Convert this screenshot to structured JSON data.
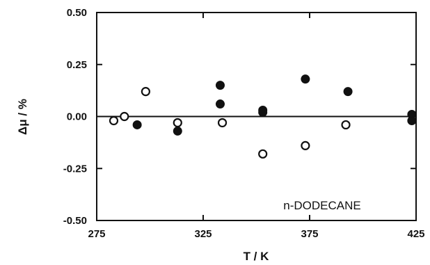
{
  "chart_data": {
    "type": "scatter",
    "xlabel": "T / K",
    "ylabel": "Δμ / %",
    "annotation": "n-DODECANE",
    "xlim": [
      275,
      425
    ],
    "ylim": [
      -0.5,
      0.5
    ],
    "xticks": [
      275,
      325,
      375,
      425
    ],
    "yticks": [
      0.5,
      0.25,
      0.0,
      -0.25,
      -0.5
    ],
    "ytick_labels": [
      "0.50",
      "0.25",
      "0.00",
      "-0.25",
      "-0.50"
    ],
    "grid": false,
    "zero_line": 0,
    "series": [
      {
        "marker": "filled-circle",
        "color": "#111111",
        "points": [
          [
            294,
            -0.04
          ],
          [
            313,
            -0.07
          ],
          [
            333,
            0.15
          ],
          [
            333,
            0.06
          ],
          [
            353,
            0.03
          ],
          [
            353,
            0.02
          ],
          [
            373,
            0.18
          ],
          [
            393,
            0.12
          ],
          [
            423,
            0.01
          ],
          [
            423,
            -0.02
          ]
        ]
      },
      {
        "marker": "open-circle",
        "color": "#111111",
        "points": [
          [
            283,
            -0.02
          ],
          [
            288,
            0.0
          ],
          [
            298,
            0.12
          ],
          [
            313,
            -0.03
          ],
          [
            334,
            -0.03
          ],
          [
            353,
            -0.18
          ],
          [
            373,
            -0.14
          ],
          [
            392,
            -0.04
          ]
        ]
      }
    ]
  }
}
